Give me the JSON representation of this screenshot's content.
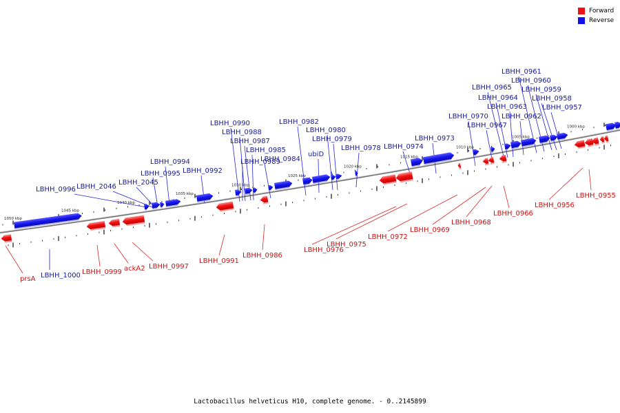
{
  "legend": [
    {
      "label": "Forward",
      "color": "#ee1111"
    },
    {
      "label": "Reverse",
      "color": "#1111ee"
    }
  ],
  "caption": "Lactobacillus helveticus H10, complete genome. - 0..2145899",
  "colors": {
    "forward": "#ee1111",
    "forward_label": "#cc1111",
    "reverse": "#1a1ae6",
    "reverse_label": "#1a1a99",
    "backbone": "#777777"
  },
  "scale_labels": [
    "1050 kbp",
    "1045 kbp",
    "1040 kbp",
    "1035 kbp",
    "1030 kbp",
    "1025 kbp",
    "1020 kbp",
    "1015 kbp",
    "1010 kbp",
    "1005 kbp",
    "1000 kbp"
  ],
  "reverse_genes": [
    "LBHH_1000",
    "LBHH_0996",
    "LBHH_2046",
    "LBHH_2045",
    "LBHH_0995",
    "LBHH_0994",
    "LBHH_0992",
    "LBHH_0990",
    "LBHH_0989",
    "LBHH_0988",
    "LBHH_0987",
    "LBHH_0985",
    "LBHH_0984",
    "LBHH_0982",
    "ubiD",
    "LBHH_0980",
    "LBHH_0979",
    "LBHH_0978",
    "LBHH_0974",
    "LBHH_0973",
    "LBHH_0970",
    "LBHH_0967",
    "LBHH_0965",
    "LBHH_0964",
    "LBHH_0963",
    "LBHH_0962",
    "LBHH_0961",
    "LBHH_0960",
    "LBHH_0959",
    "LBHH_0958",
    "LBHH_0957"
  ],
  "forward_genes": [
    "prsA",
    "LBHH_0999",
    "ackA2",
    "LBHH_0997",
    "LBHH_0991",
    "LBHH_0986",
    "LBHH_0976",
    "LBHH_0975",
    "LBHH_0972",
    "LBHH_0969",
    "LBHH_0968",
    "LBHH_0966",
    "LBHH_0956",
    "LBHH_0955"
  ]
}
